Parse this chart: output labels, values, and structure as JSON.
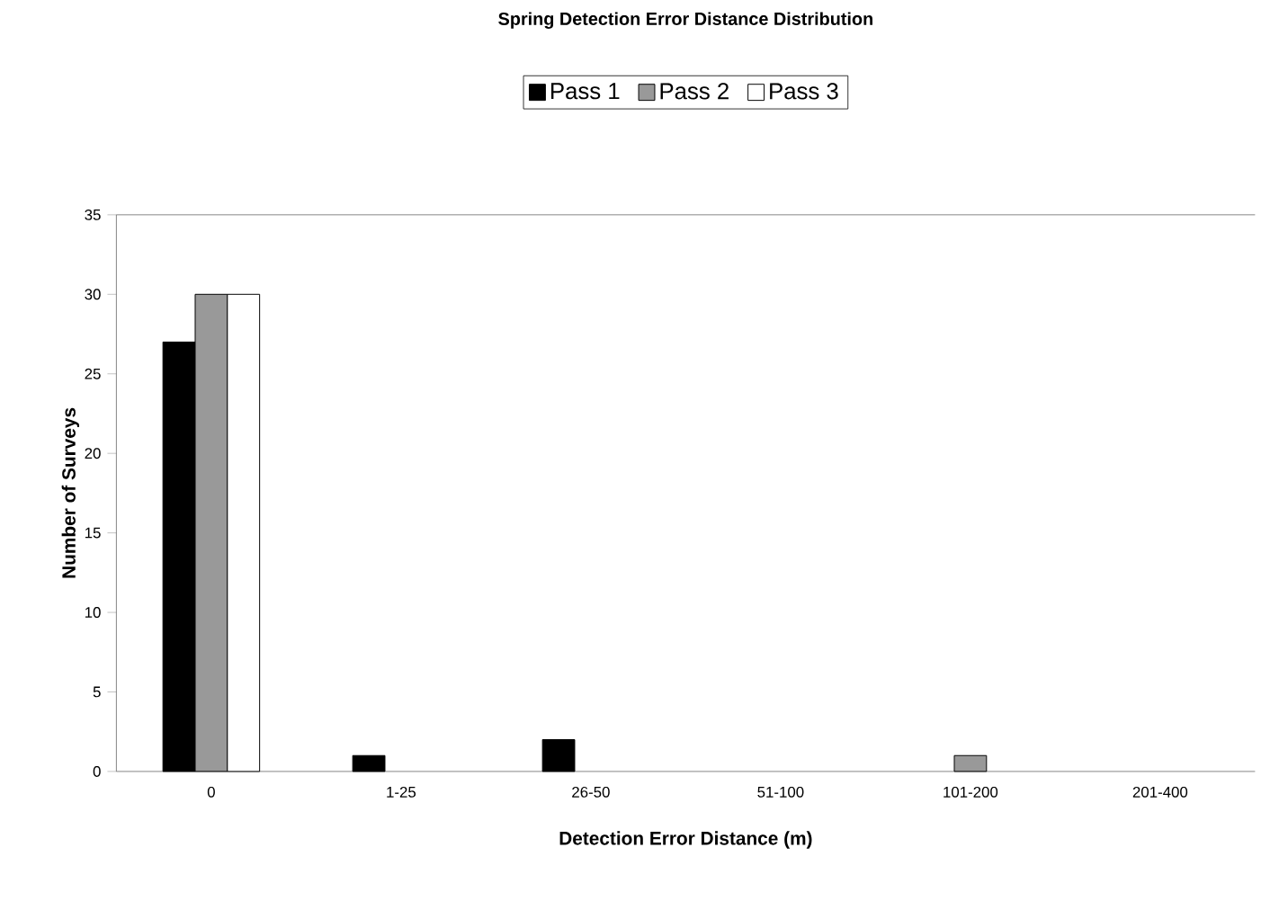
{
  "chart_data": {
    "type": "bar",
    "title": "Spring Detection Error Distance Distribution",
    "xlabel": "Detection Error Distance (m)",
    "ylabel": "Number of Surveys",
    "categories": [
      "0",
      "1-25",
      "26-50",
      "51-100",
      "101-200",
      "201-400"
    ],
    "series": [
      {
        "name": "Pass 1",
        "color": "#000000",
        "values": [
          27,
          1,
          2,
          0,
          0,
          0
        ]
      },
      {
        "name": "Pass 2",
        "color": "#999999",
        "values": [
          30,
          0,
          0,
          0,
          1,
          0
        ]
      },
      {
        "name": "Pass 3",
        "color": "#ffffff",
        "values": [
          30,
          0,
          0,
          0,
          0,
          0
        ]
      }
    ],
    "ylim": [
      0,
      35
    ],
    "yticks": [
      0,
      5,
      10,
      15,
      20,
      25,
      30,
      35
    ],
    "legend": "top"
  }
}
